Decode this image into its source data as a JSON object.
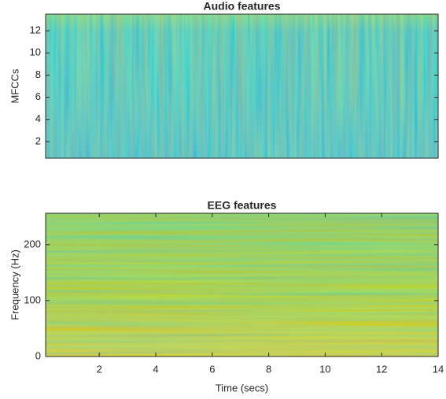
{
  "chart_data": [
    {
      "type": "heatmap",
      "title": "Audio features",
      "ylabel": "MFCCs",
      "xlim": [
        0.1,
        14
      ],
      "ylim": [
        0.5,
        13.5
      ],
      "yticks": [
        2,
        4,
        6,
        8,
        10,
        12
      ]
    },
    {
      "type": "heatmap",
      "title": "EEG features",
      "ylabel": "Frequency (Hz)",
      "xlabel": "Time (secs)",
      "xlim": [
        0.1,
        14
      ],
      "ylim": [
        0,
        256
      ],
      "xticks": [
        2,
        4,
        6,
        8,
        10,
        12,
        14
      ],
      "yticks": [
        0,
        100,
        200
      ]
    }
  ]
}
